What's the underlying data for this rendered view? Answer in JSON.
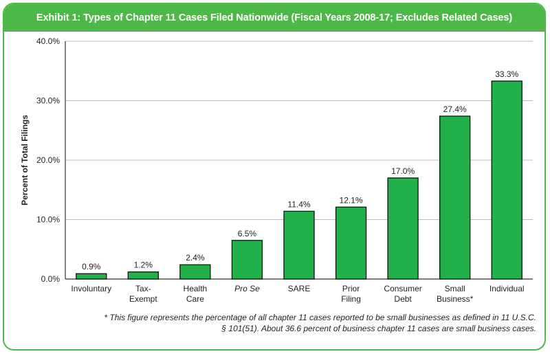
{
  "chart_data": {
    "type": "bar",
    "title": "Exhibit 1: Types of Chapter 11 Cases Filed Nationwide (Fiscal Years 2008-17; Excludes Related Cases)",
    "ylabel": "Percent of Total Filings",
    "xlabel": "",
    "ylim": [
      0,
      40
    ],
    "yticks": [
      "0.0%",
      "10.0%",
      "20.0%",
      "30.0%",
      "40.0%"
    ],
    "grid": true,
    "categories": [
      [
        "Involuntary"
      ],
      [
        "Tax-",
        "Exempt"
      ],
      [
        "Health",
        "Care"
      ],
      [
        "Pro Se"
      ],
      [
        "SARE"
      ],
      [
        "Prior",
        "Filing"
      ],
      [
        "Consumer",
        "Debt"
      ],
      [
        "Small",
        "Business*"
      ],
      [
        "Individual"
      ]
    ],
    "italic_categories": [
      3
    ],
    "values": [
      0.9,
      1.2,
      2.4,
      6.5,
      11.4,
      12.1,
      17.0,
      27.4,
      33.3
    ],
    "data_labels": [
      "0.9%",
      "1.2%",
      "2.4%",
      "6.5%",
      "11.4%",
      "12.1%",
      "17.0%",
      "27.4%",
      "33.3%"
    ],
    "bar_color": "#22b04b",
    "footnote": [
      "* This figure represents the percentage of all chapter 11 cases reported to be small businesses as defined in 11 U.S.C.",
      "§ 101(51). About 36.6 percent of business chapter 11 cases are small business cases."
    ]
  },
  "colors": {
    "frame": "#4db848",
    "title_bg": "#4db848",
    "title_text": "#ffffff"
  }
}
